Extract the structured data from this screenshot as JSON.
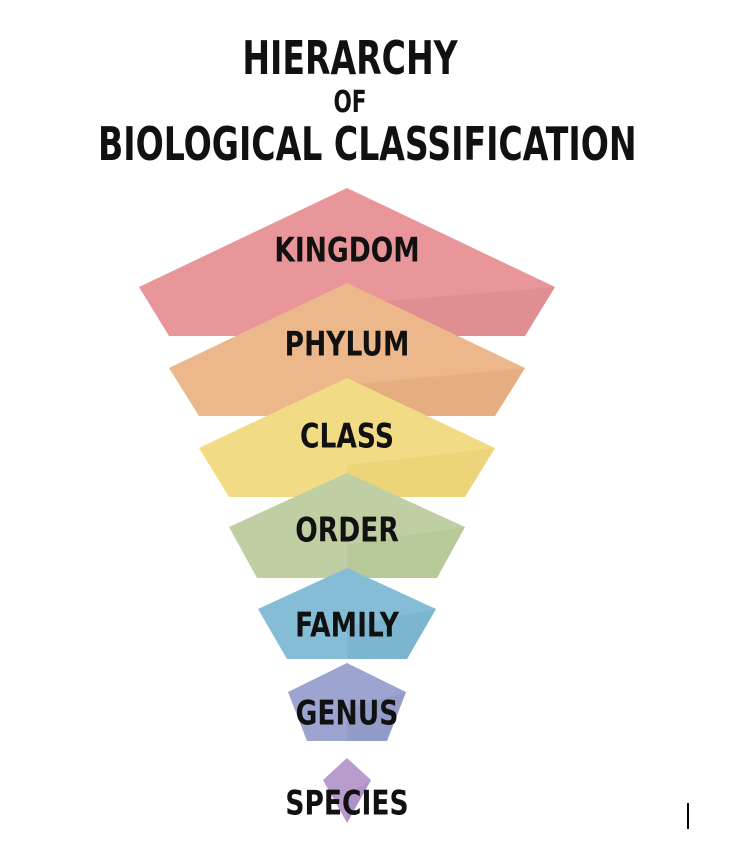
{
  "title": {
    "line1": "HIERARCHY",
    "line2": "OF",
    "line3": "BIOLOGICAL CLASSIFICATION"
  },
  "levels": [
    {
      "label": "KINGDOM",
      "color": "#e8969a",
      "shade": "#d98489"
    },
    {
      "label": "PHYLUM",
      "color": "#ecb78a",
      "shade": "#e0a374"
    },
    {
      "label": "CLASS",
      "color": "#f2db85",
      "shade": "#e9cc6a"
    },
    {
      "label": "ORDER",
      "color": "#bfcfa3",
      "shade": "#adc08e"
    },
    {
      "label": "FAMILY",
      "color": "#86bdd6",
      "shade": "#6eaac7"
    },
    {
      "label": "GENUS",
      "color": "#9da4cf",
      "shade": "#8890c0"
    },
    {
      "label": "SPECIES",
      "color": "#b79ccc",
      "shade": "#a484bd"
    }
  ]
}
